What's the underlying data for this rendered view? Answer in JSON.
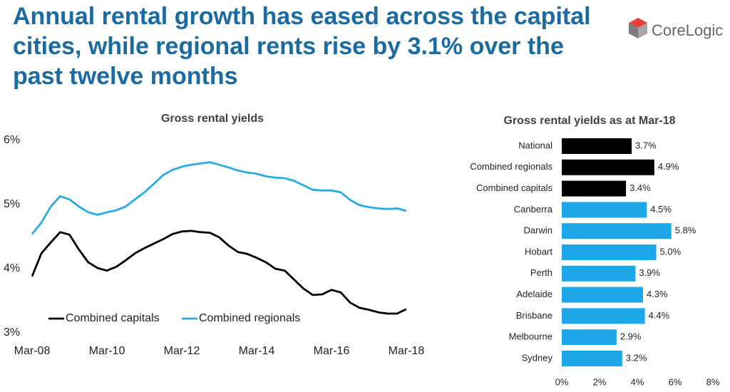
{
  "header": {
    "title": "Annual rental growth has eased across the capital cities, while regional rents rise by 3.1% over the past twelve months",
    "logo": "CoreLogic"
  },
  "chart_data": [
    {
      "type": "line",
      "title": "Gross rental yields",
      "x": [
        "Mar-08",
        "Jun-08",
        "Sep-08",
        "Dec-08",
        "Mar-09",
        "Jun-09",
        "Sep-09",
        "Dec-09",
        "Mar-10",
        "Jun-10",
        "Sep-10",
        "Dec-10",
        "Mar-11",
        "Jun-11",
        "Sep-11",
        "Dec-11",
        "Mar-12",
        "Jun-12",
        "Sep-12",
        "Dec-12",
        "Mar-13",
        "Jun-13",
        "Sep-13",
        "Dec-13",
        "Mar-14",
        "Jun-14",
        "Sep-14",
        "Dec-14",
        "Mar-15",
        "Jun-15",
        "Sep-15",
        "Dec-15",
        "Mar-16",
        "Jun-16",
        "Sep-16",
        "Dec-16",
        "Mar-17",
        "Jun-17",
        "Sep-17",
        "Dec-17",
        "Mar-18"
      ],
      "xticks": [
        "Mar-08",
        "Mar-10",
        "Mar-12",
        "Mar-14",
        "Mar-16",
        "Mar-18"
      ],
      "series": [
        {
          "name": "Combined capitals",
          "color": "#000000",
          "values": [
            3.88,
            4.24,
            4.41,
            4.57,
            4.53,
            4.3,
            4.1,
            4.01,
            3.97,
            4.03,
            4.13,
            4.24,
            4.32,
            4.39,
            4.46,
            4.54,
            4.58,
            4.59,
            4.57,
            4.56,
            4.49,
            4.36,
            4.26,
            4.23,
            4.17,
            4.1,
            4.0,
            3.97,
            3.83,
            3.69,
            3.59,
            3.6,
            3.67,
            3.63,
            3.47,
            3.39,
            3.36,
            3.32,
            3.3,
            3.3,
            3.37
          ]
        },
        {
          "name": "Combined regionals",
          "color": "#29abe2",
          "values": [
            4.54,
            4.72,
            4.97,
            5.13,
            5.08,
            4.97,
            4.88,
            4.84,
            4.88,
            4.91,
            4.97,
            5.08,
            5.19,
            5.32,
            5.46,
            5.54,
            5.59,
            5.62,
            5.64,
            5.66,
            5.62,
            5.58,
            5.53,
            5.5,
            5.48,
            5.44,
            5.42,
            5.41,
            5.37,
            5.3,
            5.23,
            5.22,
            5.22,
            5.19,
            5.07,
            4.99,
            4.96,
            4.94,
            4.93,
            4.94,
            4.9
          ]
        }
      ],
      "ylim": [
        3,
        6
      ],
      "yticks": [
        {
          "value": 3,
          "label": "3%"
        },
        {
          "value": 4,
          "label": "4%"
        },
        {
          "value": 5,
          "label": "5%"
        },
        {
          "value": 6,
          "label": "6%"
        }
      ],
      "legend": "lower-left",
      "grid": false
    },
    {
      "type": "hbar",
      "title": "Gross rental yields as at Mar-18",
      "categories": [
        "National",
        "Combined regionals",
        "Combined capitals",
        "Canberra",
        "Darwin",
        "Hobart",
        "Perth",
        "Adelaide",
        "Brisbane",
        "Melbourne",
        "Sydney"
      ],
      "values": [
        3.7,
        4.9,
        3.4,
        4.5,
        5.8,
        5.0,
        3.9,
        4.3,
        4.4,
        2.9,
        3.2
      ],
      "value_labels": [
        "3.7%",
        "4.9%",
        "3.4%",
        "4.5%",
        "5.8%",
        "5.0%",
        "3.9%",
        "4.3%",
        "4.4%",
        "2.9%",
        "3.2%"
      ],
      "colors": [
        "#000000",
        "#000000",
        "#000000",
        "#1ea7e8",
        "#1ea7e8",
        "#1ea7e8",
        "#1ea7e8",
        "#1ea7e8",
        "#1ea7e8",
        "#1ea7e8",
        "#1ea7e8"
      ],
      "xlim": [
        0,
        8
      ],
      "xticks": [
        {
          "value": 0,
          "label": "0%"
        },
        {
          "value": 2,
          "label": "2%"
        },
        {
          "value": 4,
          "label": "4%"
        },
        {
          "value": 6,
          "label": "6%"
        },
        {
          "value": 8,
          "label": "8%"
        }
      ],
      "grid": false
    }
  ]
}
